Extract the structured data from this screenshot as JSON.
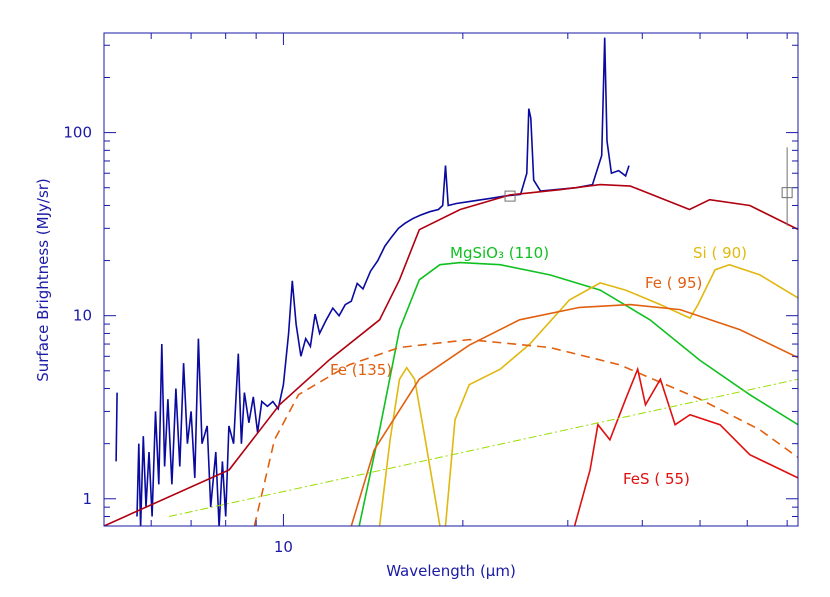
{
  "chart_data": {
    "type": "line",
    "log_x": true,
    "log_y": true,
    "x_label": "Wavelength (μm)",
    "y_label": "Surface Brightness (MJy/sr)",
    "xlim": [
      5,
      73
    ],
    "ylim": [
      0.71,
      350
    ],
    "xticks": [
      10
    ],
    "xminor": [
      5,
      6,
      7,
      8,
      9,
      20,
      30,
      40,
      50,
      60,
      70
    ],
    "yticks": [
      1,
      10,
      100
    ],
    "yminor": [
      0.8,
      0.9,
      2,
      3,
      4,
      5,
      6,
      7,
      8,
      9,
      20,
      30,
      40,
      50,
      60,
      70,
      80,
      90,
      200,
      300
    ],
    "axis_color": "#1a1aa6",
    "series": [
      {
        "color": "#0a0aa0",
        "dash": "solid",
        "x": [
          5.24,
          5.26,
          5.27,
          5.68,
          5.72,
          5.76,
          5.82,
          5.88,
          5.95,
          6.02,
          6.1,
          6.18,
          6.25,
          6.32,
          6.4,
          6.5,
          6.6,
          6.7,
          6.8,
          6.9,
          7.0,
          7.1,
          7.2,
          7.3,
          7.45,
          7.55,
          7.7,
          7.8,
          7.9,
          8.0,
          8.1,
          8.25,
          8.4,
          8.5,
          8.6,
          8.75,
          8.9,
          9.05,
          9.2,
          9.4,
          9.6,
          9.8,
          10.0,
          10.2,
          10.35,
          10.5,
          10.7,
          10.9,
          11.1,
          11.3,
          11.5,
          11.8,
          12.1,
          12.4,
          12.7,
          13.0,
          13.3,
          13.6,
          14.0,
          14.4,
          14.8,
          15.2,
          15.6,
          16.0,
          16.5,
          17.0,
          17.6,
          18.2,
          18.5,
          18.7,
          18.9,
          19.5,
          20.5,
          21.5,
          22.5,
          23.5,
          25,
          25.6,
          25.8,
          26.0,
          26.3,
          27,
          29,
          31,
          33,
          34.2,
          34.6,
          34.9,
          35.5,
          36.5,
          37.5,
          38
        ],
        "values": [
          1.6,
          3.8,
          null,
          0.8,
          2.0,
          0.7,
          2.2,
          0.9,
          1.8,
          0.8,
          3.0,
          1.2,
          7.0,
          1.5,
          3.5,
          1.2,
          4.0,
          1.5,
          5.5,
          2.0,
          3.0,
          1.3,
          7.5,
          2.0,
          2.5,
          0.9,
          1.8,
          0.7,
          1.6,
          0.8,
          2.5,
          2.0,
          6.2,
          2.0,
          3.8,
          2.6,
          3.6,
          2.3,
          3.4,
          3.2,
          3.4,
          3.1,
          4.2,
          8.0,
          15.5,
          9.0,
          6.0,
          7.5,
          6.8,
          10.2,
          8.0,
          9.5,
          11.0,
          10.0,
          11.5,
          12.0,
          15.0,
          14.0,
          17.5,
          20.0,
          24.0,
          27.0,
          30.0,
          32.0,
          34.0,
          35.5,
          37.0,
          38.0,
          40,
          66,
          40,
          41,
          42,
          43,
          44,
          45,
          46,
          60,
          135,
          120,
          55,
          48,
          49,
          50,
          52,
          75,
          330,
          90,
          60,
          62,
          58,
          66
        ]
      },
      {
        "color": "#b00010",
        "dash": "solid",
        "x": [
          5,
          8.11,
          9.85,
          11.95,
          14.5,
          15.66,
          16.9,
          19.8,
          24,
          29.1,
          34,
          38.2,
          48,
          51.9,
          60.6,
          73
        ],
        "values": [
          0.71,
          1.44,
          3.26,
          5.75,
          9.5,
          15.7,
          29.5,
          38,
          45.7,
          48.8,
          52,
          51,
          38,
          43,
          40,
          29.6
        ]
      },
      {
        "name": "MgSiO₃ (110)",
        "color": "#10c020",
        "dash": "solid",
        "x": [
          13.4,
          14.5,
          15.66,
          16.9,
          18.3,
          19.8,
          23.1,
          28.0,
          34,
          41.2,
          50,
          60.6,
          73
        ],
        "values": [
          0.71,
          2.38,
          8.4,
          15.7,
          19.0,
          19.5,
          19,
          16.7,
          13.8,
          9.5,
          5.7,
          3.7,
          2.54
        ]
      },
      {
        "name": "Si ( 90)",
        "color": "#e0b810",
        "dash": "solid",
        "x": [
          14.5,
          15.1,
          15.66,
          16.1,
          16.6,
          17.3,
          18.3,
          18.5,
          18.7,
          19.4,
          20.5,
          23.1,
          25.9,
          30.2,
          34,
          37.5,
          42.9,
          48.1,
          49.6,
          53,
          56,
          63,
          73
        ],
        "values": [
          0.71,
          2.1,
          4.5,
          5.2,
          4.5,
          2.1,
          0.71,
          null,
          0.71,
          2.7,
          4.2,
          5.1,
          7,
          12.2,
          15.1,
          13.8,
          11.5,
          9.7,
          11.5,
          17.8,
          19,
          16.7,
          12.5
        ]
      },
      {
        "name": "Fe ( 95)",
        "color": "#e06010",
        "dash": "solid",
        "x": [
          13,
          14.2,
          16.9,
          20.5,
          24.9,
          31.4,
          38.2,
          46.3,
          58.3,
          73
        ],
        "values": [
          0.71,
          1.85,
          4.5,
          6.9,
          9.5,
          11.1,
          11.5,
          10.8,
          8.4,
          5.9
        ]
      },
      {
        "name": "Fe (135)",
        "color": "#e06010",
        "dash": "dashed",
        "x": [
          8.94,
          9.66,
          10.6,
          12.9,
          15.66,
          20.5,
          28,
          36.6,
          50,
          63,
          73
        ],
        "values": [
          0.71,
          2.1,
          3.7,
          5.4,
          6.7,
          7.4,
          6.7,
          5.4,
          3.5,
          2.38,
          1.68
        ]
      },
      {
        "name": "FeS ( 55)",
        "color": "#e01010",
        "dash": "solid",
        "x": [
          30.8,
          32.7,
          33.7,
          35.3,
          37.5,
          39.3,
          40.5,
          42.9,
          45.4,
          48.1,
          54,
          60.6,
          73
        ],
        "values": [
          0.71,
          1.44,
          2.54,
          2.1,
          3.5,
          5.1,
          3.26,
          4.5,
          2.54,
          2.88,
          2.54,
          1.74,
          1.3
        ]
      },
      {
        "color": "#99dd00",
        "dash": "dashdot",
        "x": [
          6.43,
          73
        ],
        "values": [
          0.8,
          4.5
        ]
      }
    ],
    "photometry": {
      "color": "#707070",
      "x": [
        24,
        70
      ],
      "values": [
        45,
        47
      ],
      "err_low": [
        null,
        31
      ],
      "err_high": [
        null,
        83
      ]
    }
  }
}
